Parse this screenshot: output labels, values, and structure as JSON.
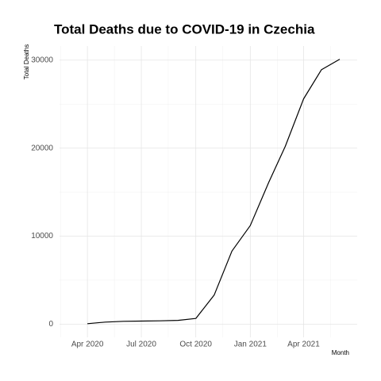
{
  "chart_data": {
    "type": "line",
    "title": "Total Deaths due to COVID-19 in Czechia",
    "x_label": "Month",
    "y_label": "Total Deaths",
    "x": [
      "2020-04",
      "2020-05",
      "2020-06",
      "2020-07",
      "2020-08",
      "2020-09",
      "2020-10",
      "2020-11",
      "2020-12",
      "2021-01",
      "2021-02",
      "2021-03",
      "2021-04",
      "2021-05",
      "2021-06"
    ],
    "series": [
      {
        "name": "Total Deaths",
        "color": "#000000",
        "values": [
          50,
          230,
          320,
          350,
          380,
          430,
          650,
          3300,
          8300,
          11200,
          16100,
          20200,
          25600,
          28900,
          30100
        ]
      }
    ],
    "xlim": [
      "2020-03",
      "2021-06"
    ],
    "xticks": [
      {
        "value": "2020-04",
        "label": "Apr 2020"
      },
      {
        "value": "2020-07",
        "label": "Jul 2020"
      },
      {
        "value": "2020-10",
        "label": "Oct 2020"
      },
      {
        "value": "2021-01",
        "label": "Jan 2021"
      },
      {
        "value": "2021-04",
        "label": "Apr 2021"
      }
    ],
    "ylim": [
      -1500,
      31600
    ],
    "yticks": [
      0,
      10000,
      20000,
      30000
    ],
    "grid": true
  }
}
